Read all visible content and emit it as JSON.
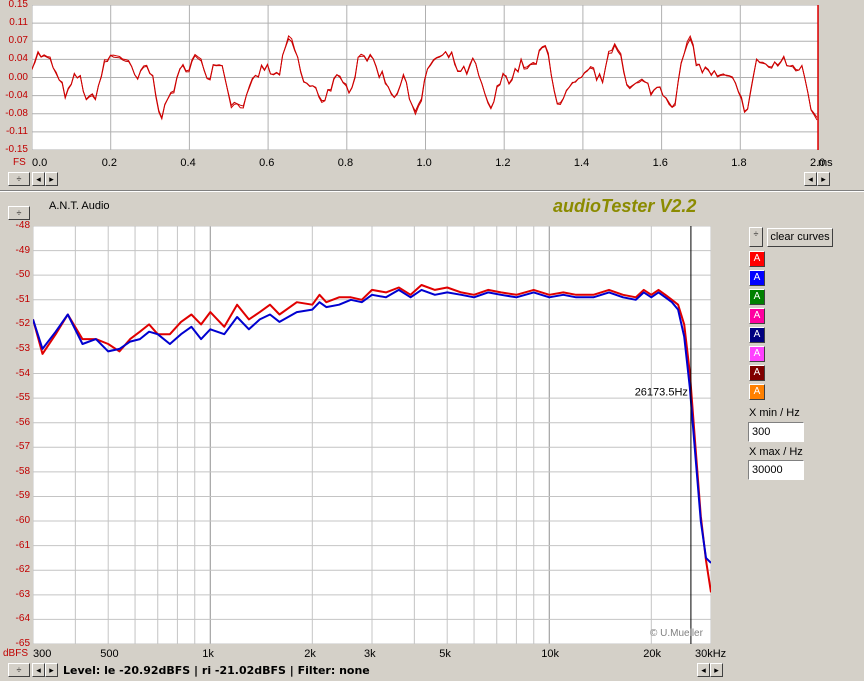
{
  "waveform": {
    "y_ticks": [
      "0.15",
      "0.11",
      "0.07",
      "0.04",
      "0.00",
      "-0.04",
      "-0.08",
      "-0.11",
      "-0.15"
    ],
    "fs_label": "FS",
    "x_ticks": [
      "0.0",
      "0.2",
      "0.4",
      "0.6",
      "0.8",
      "1.0",
      "1.2",
      "1.4",
      "1.6",
      "1.8",
      "2.0"
    ],
    "x_unit": "ms",
    "trace_color": "#d00000"
  },
  "header": {
    "device_label": "A.N.T. Audio",
    "app_title": "audioTester V2.2"
  },
  "spectrum": {
    "y_unit": "dBFS",
    "y_ticks": [
      "-48",
      "-49",
      "-50",
      "-51",
      "-52",
      "-53",
      "-54",
      "-55",
      "-56",
      "-57",
      "-58",
      "-59",
      "-60",
      "-61",
      "-62",
      "-63",
      "-64",
      "-65"
    ],
    "x_ticks": [
      {
        "label": "300",
        "hz": 300
      },
      {
        "label": "500",
        "hz": 500
      },
      {
        "label": "1k",
        "hz": 1000
      },
      {
        "label": "2k",
        "hz": 2000
      },
      {
        "label": "3k",
        "hz": 3000
      },
      {
        "label": "5k",
        "hz": 5000
      },
      {
        "label": "10k",
        "hz": 10000
      },
      {
        "label": "20k",
        "hz": 20000
      },
      {
        "label": "30kHz",
        "hz": 30000
      }
    ],
    "cursor_label": "26173.5Hz",
    "cursor_hz": 26173.5,
    "copyright": "© U.Mueller"
  },
  "sidebar": {
    "clear_label": "clear curves",
    "channels": [
      {
        "label": "A",
        "color": "#ff0000"
      },
      {
        "label": "A",
        "color": "#0000ff"
      },
      {
        "label": "A",
        "color": "#008000"
      },
      {
        "label": "A",
        "color": "#ff00a0"
      },
      {
        "label": "A",
        "color": "#000080"
      },
      {
        "label": "A",
        "color": "#ff40ff"
      },
      {
        "label": "A",
        "color": "#800000"
      },
      {
        "label": "A",
        "color": "#ff8000"
      }
    ],
    "xmin_label": "X min / Hz",
    "xmin_value": "300",
    "xmax_label": "X max / Hz",
    "xmax_value": "30000"
  },
  "status": {
    "text": "Level: le -20.92dBFS | ri -21.02dBFS | Filter: none"
  },
  "chart_data": {
    "type": "line",
    "xlabel": "kHz",
    "ylabel": "dBFS",
    "xlim": [
      300,
      30000
    ],
    "ylim": [
      -65,
      -48
    ],
    "x_scale": "log",
    "grid": true,
    "series": [
      {
        "color": "#e00000",
        "x": [
          300,
          320,
          350,
          380,
          420,
          460,
          500,
          540,
          580,
          620,
          660,
          700,
          760,
          820,
          880,
          940,
          1000,
          1100,
          1200,
          1300,
          1400,
          1500,
          1600,
          1800,
          2000,
          2100,
          2200,
          2400,
          2600,
          2800,
          3000,
          3300,
          3600,
          3900,
          4200,
          4600,
          5000,
          5500,
          6000,
          6600,
          7200,
          8000,
          9000,
          10000,
          11000,
          12000,
          13500,
          15000,
          16500,
          18000,
          19000,
          20000,
          21000,
          22000,
          23000,
          24000,
          25000,
          26000,
          27000,
          28000,
          29000,
          30000
        ],
        "y": [
          -51.8,
          -53.2,
          -52.4,
          -51.6,
          -52.6,
          -52.6,
          -52.8,
          -53.1,
          -52.6,
          -52.3,
          -52.0,
          -52.4,
          -52.4,
          -51.9,
          -51.6,
          -52.0,
          -51.5,
          -52.1,
          -51.2,
          -51.8,
          -51.5,
          -51.2,
          -51.6,
          -51.1,
          -51.2,
          -50.8,
          -51.1,
          -50.9,
          -50.9,
          -51.0,
          -50.6,
          -50.7,
          -50.5,
          -50.8,
          -50.4,
          -50.6,
          -50.5,
          -50.7,
          -50.8,
          -50.6,
          -50.7,
          -50.8,
          -50.6,
          -50.8,
          -50.7,
          -50.8,
          -50.8,
          -50.6,
          -50.8,
          -50.9,
          -50.6,
          -50.8,
          -50.6,
          -50.8,
          -51.0,
          -51.2,
          -52.0,
          -54.0,
          -57.0,
          -59.8,
          -61.6,
          -62.9
        ]
      },
      {
        "color": "#0000d0",
        "x": [
          300,
          320,
          350,
          380,
          420,
          460,
          500,
          540,
          580,
          620,
          660,
          700,
          760,
          820,
          880,
          940,
          1000,
          1100,
          1200,
          1300,
          1400,
          1500,
          1600,
          1800,
          2000,
          2100,
          2200,
          2400,
          2600,
          2800,
          3000,
          3300,
          3600,
          3900,
          4200,
          4600,
          5000,
          5500,
          6000,
          6600,
          7200,
          8000,
          9000,
          10000,
          11000,
          12000,
          13500,
          15000,
          16500,
          18000,
          19000,
          20000,
          21000,
          22000,
          23000,
          24000,
          25000,
          26000,
          27000,
          28000,
          29000,
          30000
        ],
        "y": [
          -51.8,
          -53.0,
          -52.3,
          -51.6,
          -52.8,
          -52.6,
          -53.1,
          -53.0,
          -52.7,
          -52.6,
          -52.3,
          -52.4,
          -52.8,
          -52.4,
          -52.1,
          -52.6,
          -52.2,
          -52.4,
          -51.7,
          -52.2,
          -51.8,
          -51.6,
          -51.9,
          -51.5,
          -51.4,
          -51.1,
          -51.3,
          -51.2,
          -51.0,
          -51.1,
          -50.8,
          -50.9,
          -50.6,
          -50.9,
          -50.6,
          -50.8,
          -50.7,
          -50.8,
          -50.9,
          -50.7,
          -50.8,
          -50.9,
          -50.7,
          -50.9,
          -50.8,
          -50.9,
          -50.9,
          -50.7,
          -50.9,
          -51.0,
          -50.7,
          -50.9,
          -50.7,
          -50.9,
          -51.1,
          -51.4,
          -52.5,
          -54.6,
          -57.4,
          -60.0,
          -61.5,
          -61.7
        ]
      }
    ]
  }
}
